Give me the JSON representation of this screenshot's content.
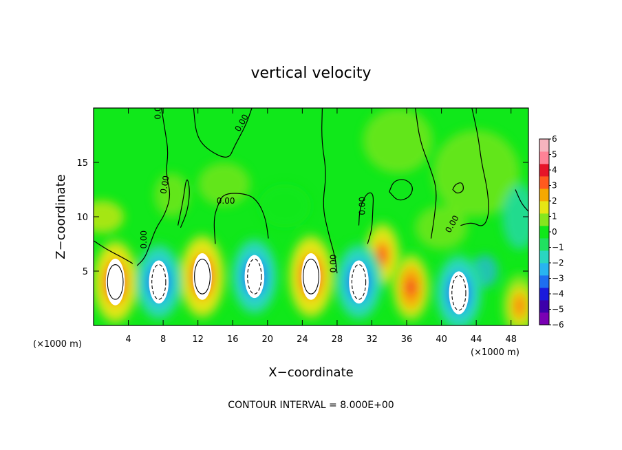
{
  "chart_data": {
    "type": "heatmap",
    "title": "vertical velocity",
    "xlabel": "X−coordinate",
    "ylabel": "Z−coordinate",
    "x_unit_left": "(×1000 m)",
    "x_unit_right": "(×1000 m)",
    "footnote": "CONTOUR INTERVAL = 8.000E+00",
    "xlim": [
      0,
      50
    ],
    "ylim": [
      0,
      20
    ],
    "x_ticks": [
      4,
      8,
      12,
      16,
      20,
      24,
      28,
      32,
      36,
      40,
      44,
      48
    ],
    "x_tick_labels": [
      "4",
      "8",
      "12",
      "16",
      "20",
      "24",
      "28",
      "32",
      "36",
      "40",
      "44",
      "48"
    ],
    "y_ticks": [
      5,
      10,
      15
    ],
    "y_tick_labels": [
      "5",
      "10",
      "15"
    ],
    "colorbar": {
      "range": [
        -6,
        6
      ],
      "labels": [
        "6",
        "5",
        "4",
        "3",
        "2",
        "1",
        "0",
        "−1",
        "−2",
        "−3",
        "−4",
        "−5",
        "−6"
      ],
      "colors": [
        "#7a00b4",
        "#3c00aa",
        "#1a1adc",
        "#1e6ef0",
        "#28b4f0",
        "#2ad6c0",
        "#20e060",
        "#10e81a",
        "#86e61e",
        "#e6e614",
        "#f5a800",
        "#ff5a1e",
        "#e61428",
        "#ff8296",
        "#f6b4be"
      ]
    },
    "contour_labels": [
      {
        "text": "0.00",
        "x": 17.3,
        "y": 18.5,
        "angle": -60
      },
      {
        "text": "0.00",
        "x": 8.5,
        "y": 12.9,
        "angle": -80
      },
      {
        "text": "0.00",
        "x": 15.2,
        "y": 11.2,
        "angle": 0
      },
      {
        "text": "0.00",
        "x": 31.2,
        "y": 11.0,
        "angle": -90
      },
      {
        "text": "0.00",
        "x": 41.5,
        "y": 9.2,
        "angle": -60
      },
      {
        "text": "0.00",
        "x": 6.1,
        "y": 7.9,
        "angle": -90
      },
      {
        "text": "0.00",
        "x": 27.9,
        "y": 5.7,
        "angle": -90
      },
      {
        "text": "0.00",
        "x": 7.7,
        "y": 19.8,
        "angle": -90
      }
    ],
    "updraft_cells": [
      {
        "x": 2.5,
        "z": 4.0,
        "peak": 6
      },
      {
        "x": 12.5,
        "z": 4.5,
        "peak": 6
      },
      {
        "x": 25.0,
        "z": 4.5,
        "peak": 6
      },
      {
        "x": 36.5,
        "z": 3.5,
        "peak": 4.5
      },
      {
        "x": 33.2,
        "z": 6.5,
        "peak": 4
      },
      {
        "x": 49.0,
        "z": 1.8,
        "peak": 3.5
      }
    ],
    "downdraft_cells": [
      {
        "x": 7.5,
        "z": 4.0,
        "peak": -6
      },
      {
        "x": 18.5,
        "z": 4.5,
        "peak": -6
      },
      {
        "x": 30.5,
        "z": 4.0,
        "peak": -6
      },
      {
        "x": 42.0,
        "z": 3.0,
        "peak": -6
      }
    ]
  }
}
